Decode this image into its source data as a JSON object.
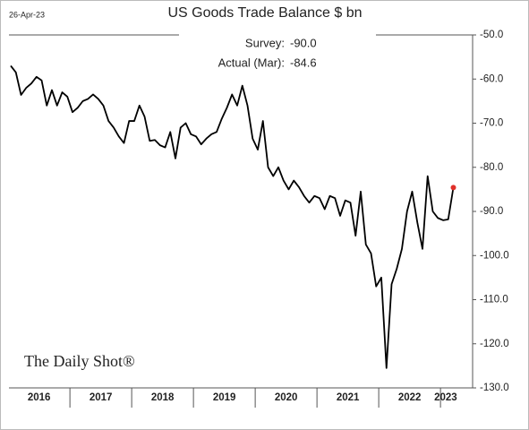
{
  "chart_data": {
    "type": "line",
    "title": "US Goods Trade Balance $ bn",
    "date": "26-Apr-23",
    "source": "The Daily Shot®",
    "annotations": [
      "Survey:",
      "-90.0",
      "Actual (Mar):",
      "-84.6"
    ],
    "categories": [
      null,
      null,
      null,
      null,
      null,
      null,
      "2016",
      null,
      null,
      null,
      null,
      null,
      null,
      null,
      null,
      null,
      null,
      null,
      "2017",
      null,
      null,
      null,
      null,
      null,
      null,
      null,
      null,
      null,
      null,
      null,
      "2018",
      null,
      null,
      null,
      null,
      null,
      null,
      null,
      null,
      null,
      null,
      null,
      "2019",
      null,
      null,
      null,
      null,
      null,
      null,
      null,
      null,
      null,
      null,
      null,
      "2020",
      null,
      null,
      null,
      null,
      null,
      null,
      null,
      null,
      null,
      null,
      null,
      "2021",
      null,
      null,
      null,
      null,
      null,
      null,
      null,
      null,
      null,
      null,
      null,
      "2022",
      null,
      null,
      null,
      null,
      null,
      null,
      "2023",
      null
    ],
    "series": [
      {
        "name": "US Goods Trade Balance",
        "color": "#000000",
        "last_point_color": "#e0302a",
        "values": [
          -57,
          -58.5,
          -63.6,
          -62,
          -61,
          -59.5,
          -60.3,
          -66,
          -62.5,
          -66,
          -63,
          -64,
          -67.5,
          -66.5,
          -65,
          -64.5,
          -63.5,
          -64.5,
          -66,
          -69.5,
          -71,
          -73,
          -74.5,
          -69.5,
          -69.5,
          -66,
          -68.5,
          -74,
          -73.8,
          -75,
          -75.5,
          -72,
          -78,
          -71,
          -70,
          -72.5,
          -73,
          -74.8,
          -73.5,
          -72.5,
          -72,
          -69,
          -66.5,
          -63.5,
          -66,
          -61.5,
          -66,
          -73.5,
          -76,
          -69.5,
          -80,
          -82,
          -80,
          -83,
          -85,
          -83,
          -84.5,
          -86.5,
          -88,
          -86.5,
          -87,
          -89.5,
          -86.5,
          -87,
          -91,
          -87.5,
          -88,
          -95.5,
          -85.5,
          -97.5,
          -99.5,
          -107,
          -105,
          -125.5,
          -106.5,
          -103,
          -98.5,
          -90,
          -85.5,
          -92.5,
          -98.5,
          -82,
          -90,
          -91.5,
          -92,
          -91.8,
          -84.6
        ]
      }
    ],
    "ylim": [
      -130,
      -50
    ],
    "yticks": [
      {
        "value": -50,
        "label": "-50.0"
      },
      {
        "value": -60,
        "label": "-60.0"
      },
      {
        "value": -70,
        "label": "-70.0"
      },
      {
        "value": -80,
        "label": "-80.0"
      },
      {
        "value": -90,
        "label": "-90.0"
      },
      {
        "value": -100,
        "label": "-100.0"
      },
      {
        "value": -110,
        "label": "-110.0"
      },
      {
        "value": -120,
        "label": "-120.0"
      },
      {
        "value": -130,
        "label": "-130.0"
      }
    ],
    "y_axis_side": "right",
    "grid": false
  }
}
